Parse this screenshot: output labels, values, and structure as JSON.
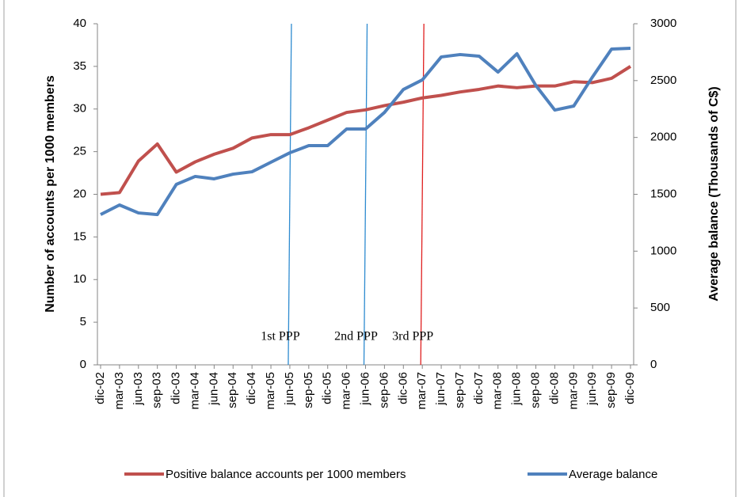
{
  "chart_data": {
    "type": "line",
    "categories": [
      "dic-02",
      "mar-03",
      "jun-03",
      "sep-03",
      "dic-03",
      "mar-04",
      "jun-04",
      "sep-04",
      "dic-04",
      "mar-05",
      "jun-05",
      "sep-05",
      "dic-05",
      "mar-06",
      "jun-06",
      "sep-06",
      "dic-06",
      "mar-07",
      "jun-07",
      "sep-07",
      "dic-07",
      "mar-08",
      "jun-08",
      "sep-08",
      "dic-08",
      "mar-09",
      "jun-09",
      "sep-09",
      "dic-09"
    ],
    "series": [
      {
        "name": "Positive balance accounts per 1000 members",
        "color": "#c0504d",
        "values": [
          20.0,
          20.2,
          23.9,
          25.9,
          22.6,
          23.8,
          24.7,
          25.4,
          26.6,
          27.0,
          27.0,
          27.8,
          28.7,
          29.6,
          29.9,
          30.4,
          30.8,
          31.3,
          31.6,
          32.0,
          32.3,
          32.7,
          32.5,
          32.7,
          32.7,
          33.2,
          33.1,
          33.6,
          35.0
        ]
      },
      {
        "name": "Average balance",
        "color": "#4f81bd",
        "axis": "y2",
        "values": [
          1322,
          1406,
          1336,
          1322,
          1587,
          1657,
          1636,
          1677,
          1698,
          1782,
          1865,
          1928,
          1928,
          2074,
          2074,
          2220,
          2422,
          2506,
          2708,
          2729,
          2715,
          2575,
          2736,
          2457,
          2241,
          2276,
          2534,
          2777,
          2784
        ]
      }
    ],
    "ylabel": "Number of accounts  per 1000 members",
    "y2label": "Average balance  (Thousands of C$)",
    "ylim": [
      0,
      40
    ],
    "yticks": [
      0,
      5,
      10,
      15,
      20,
      25,
      30,
      35,
      40
    ],
    "y2lim": [
      0,
      3000
    ],
    "y2ticks": [
      0,
      500,
      1000,
      1500,
      2000,
      2500,
      3000
    ],
    "grid": false,
    "legend": "bottom",
    "annotations": [
      {
        "label": "1st PPP",
        "x": "jun-05",
        "color": "#2e8bd0"
      },
      {
        "label": "2nd PPP",
        "x": "jun-06",
        "color": "#2e8bd0"
      },
      {
        "label": "3rd PPP",
        "x": "mar-07",
        "color": "#e02020"
      }
    ]
  }
}
